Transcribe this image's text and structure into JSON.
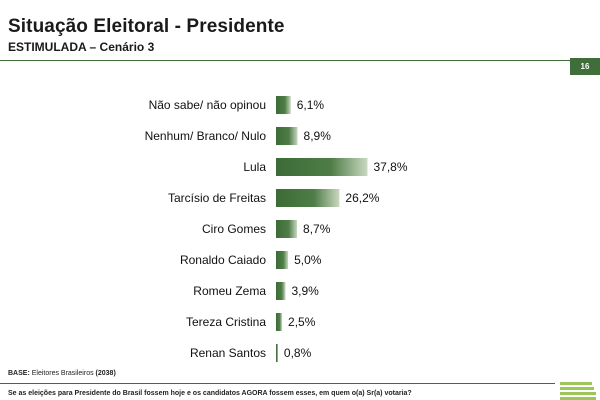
{
  "header": {
    "title": "Situação Eleitoral - Presidente",
    "subtitle": "ESTIMULADA – Cenário 3",
    "page_number": "16"
  },
  "footer": {
    "base_label": "BASE:",
    "base_text": "Eleitores Brasileiros",
    "base_count": "(2038)",
    "question": "Se as eleições para Presidente do Brasil fossem hoje e os candidatos AGORA fossem esses, em quem o(a) Sr(a) votaria?"
  },
  "colors": {
    "accent": "#3f6e3a",
    "bar_dark": "#3d6b37",
    "bar_light": "#c9d8c2"
  },
  "chart_data": {
    "type": "bar",
    "orientation": "horizontal",
    "categories": [
      "Não sabe/ não opinou",
      "Nenhum/ Branco/ Nulo",
      "Lula",
      "Tarcísio de Freitas",
      "Ciro Gomes",
      "Ronaldo Caiado",
      "Romeu Zema",
      "Tereza Cristina",
      "Renan Santos"
    ],
    "values": [
      6.1,
      8.9,
      37.8,
      26.2,
      8.7,
      5.0,
      3.9,
      2.5,
      0.8
    ],
    "labels": [
      "6,1%",
      "8,9%",
      "37,8%",
      "26,2%",
      "8,7%",
      "5,0%",
      "3,9%",
      "2,5%",
      "0,8%"
    ],
    "unit": "%",
    "xlim": [
      0,
      40
    ]
  }
}
